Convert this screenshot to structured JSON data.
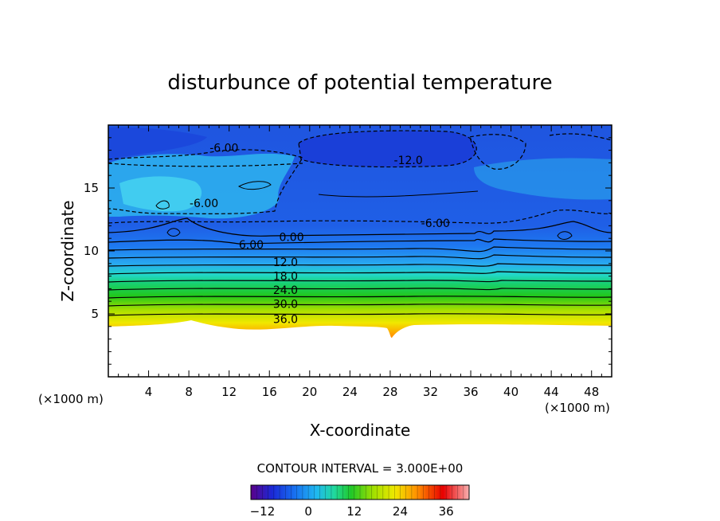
{
  "chart_data": {
    "type": "heatmap",
    "title": "disturbunce of potential temperature",
    "xlabel": "X-coordinate",
    "ylabel": "Z-coordinate",
    "x_unit_left": "(×1000 m)",
    "x_unit_right": "(×1000 m)",
    "xlim": [
      0,
      50
    ],
    "ylim": [
      0,
      20
    ],
    "x_ticks": [
      4,
      8,
      12,
      16,
      20,
      24,
      28,
      32,
      36,
      40,
      44,
      48
    ],
    "y_ticks": [
      5,
      10,
      15
    ],
    "grid": false,
    "contour_interval_text": "CONTOUR INTERVAL = 3.000E+00",
    "contour_levels": [
      -12,
      -9,
      -6,
      -3,
      0,
      3,
      6,
      9,
      12,
      15,
      18,
      21,
      24,
      27,
      30,
      33,
      36,
      39
    ],
    "contour_labels": [
      {
        "text": "-6.00",
        "x": 11.5,
        "z": 18.2
      },
      {
        "text": "-12.0",
        "x": 29.8,
        "z": 17.2
      },
      {
        "text": "-6.00",
        "x": 9.5,
        "z": 13.8
      },
      {
        "text": "-6.00",
        "x": 32.5,
        "z": 12.2
      },
      {
        "text": "0.00",
        "x": 18.2,
        "z": 11.1
      },
      {
        "text": "6.00",
        "x": 14.2,
        "z": 10.5
      },
      {
        "text": "12.0",
        "x": 17.6,
        "z": 9.1
      },
      {
        "text": "18.0",
        "x": 17.6,
        "z": 8.0
      },
      {
        "text": "24.0",
        "x": 17.6,
        "z": 6.9
      },
      {
        "text": "30.0",
        "x": 17.6,
        "z": 5.8
      },
      {
        "text": "36.0",
        "x": 17.6,
        "z": 4.6
      }
    ],
    "colorbar": {
      "min": -15,
      "max": 42,
      "tick_values": [
        -12,
        0,
        12,
        24,
        36
      ],
      "tick_labels": [
        "−12",
        "0",
        "12",
        "24",
        "36"
      ]
    },
    "colors": {
      "very_cold": "#2a24c4",
      "cold": "#1a52e8",
      "cool": "#1fb0ea",
      "neutral": "#29d2b8",
      "green": "#1ec82a",
      "yellow": "#f0e800",
      "orange": "#ff8000",
      "red": "#e80000",
      "pink": "#f8a0a0"
    }
  }
}
